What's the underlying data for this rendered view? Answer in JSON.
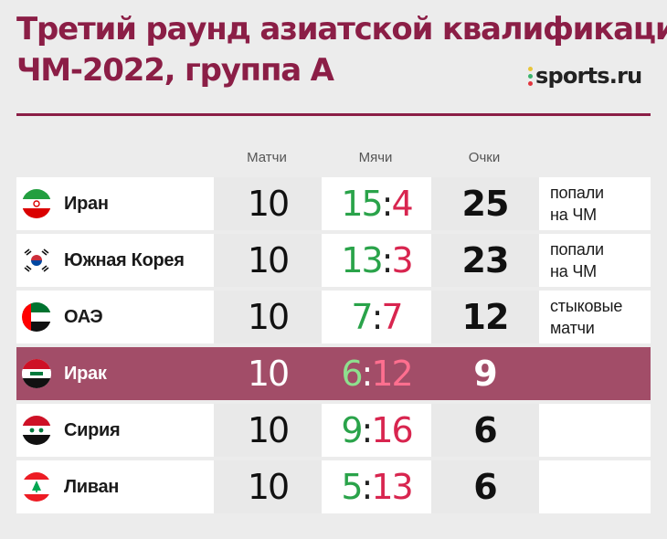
{
  "title_lines": [
    "Третий раунд азиатской квалификации",
    "ЧМ-2022, группа А"
  ],
  "logo": {
    "text": "sports.ru",
    "dot_colors": [
      "#e8c53a",
      "#3bb36e",
      "#e2353e"
    ]
  },
  "columns": {
    "matches": "Матчи",
    "goals": "Мячи",
    "points": "Очки"
  },
  "colors": {
    "accent": "#8b1e46",
    "highlight_row": "#a24d68",
    "goals_for": "#2aa34a",
    "goals_against": "#d8254f"
  },
  "rows": [
    {
      "country": "Иран",
      "flag": "iran-flag-icon",
      "matches": "10",
      "gf": "15",
      "ga": "4",
      "points": "25",
      "note1": "попали",
      "note2": "на ЧМ"
    },
    {
      "country": "Южная Корея",
      "flag": "south-korea-flag-icon",
      "matches": "10",
      "gf": "13",
      "ga": "3",
      "points": "23",
      "note1": "попали",
      "note2": "на ЧМ"
    },
    {
      "country": "ОАЭ",
      "flag": "uae-flag-icon",
      "matches": "10",
      "gf": "7",
      "ga": "7",
      "points": "12",
      "note1": "стыковые",
      "note2": "матчи"
    },
    {
      "country": "Ирак",
      "flag": "iraq-flag-icon",
      "matches": "10",
      "gf": "6",
      "ga": "12",
      "points": "9",
      "note1": "",
      "note2": ""
    },
    {
      "country": "Сирия",
      "flag": "syria-flag-icon",
      "matches": "10",
      "gf": "9",
      "ga": "16",
      "points": "6",
      "note1": "",
      "note2": ""
    },
    {
      "country": "Ливан",
      "flag": "lebanon-flag-icon",
      "matches": "10",
      "gf": "5",
      "ga": "13",
      "points": "6",
      "note1": "",
      "note2": ""
    }
  ]
}
